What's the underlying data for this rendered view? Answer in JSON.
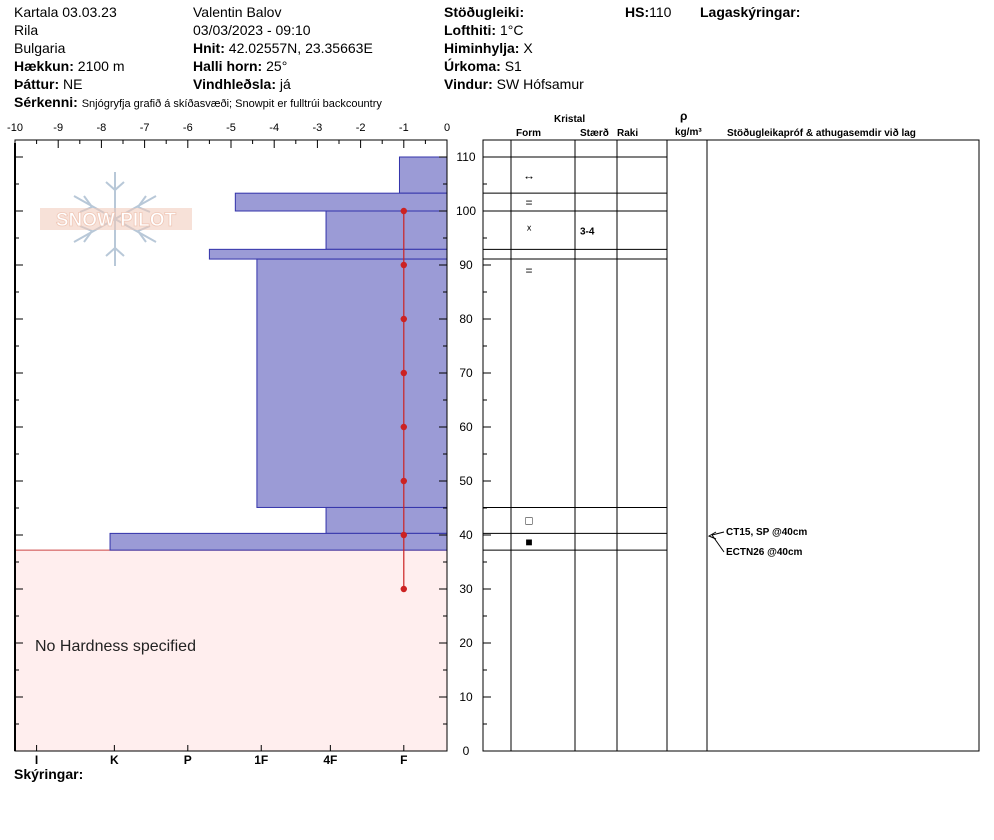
{
  "header": {
    "left": {
      "line1": "Kartala 03.03.23",
      "line2": "Rila",
      "line3": "Bulgaria",
      "elevation_label": "Hækkun:",
      "elevation_value": "2100 m",
      "aspect_label": "Þáttur:",
      "aspect_value": "NE"
    },
    "middle": {
      "observer": "Valentin Balov",
      "datetime": "03/03/2023 - 09:10",
      "coords_label": "Hnit:",
      "coords_value": "42.02557N, 23.35663E",
      "slope_label": "Halli horn:",
      "slope_value": "25°",
      "wind_loading_label": "Vindhleðsla:",
      "wind_loading_value": "já"
    },
    "right": {
      "stability_label": "Stöðugleiki:",
      "air_temp_label": "Lofthiti:",
      "air_temp_value": "1°C",
      "sky_label": "Himinhylja:",
      "sky_value": "X",
      "precip_label": "Úrkoma:",
      "precip_value": "S1",
      "wind_label": "Vindur:",
      "wind_value": "SW Hófsamur",
      "hs_label": "HS:",
      "hs_value": "110",
      "layer_notes_label": "Lagaskýringar:"
    },
    "features_label": "Sérkenni:",
    "features_value": "Snjógryfja grafið á skíðasvæði; Snowpit er fulltrúi backcountry"
  },
  "table_headers": {
    "crystal": "Kristal",
    "form": "Form",
    "size": "Stærð",
    "moisture": "Raki",
    "rho": "ρ",
    "density_unit": "kg/m³",
    "tests": "Stöðugleikapróf & athugasemdir við lag"
  },
  "logo_text": "SNOW PILOT",
  "no_hardness_text": "No Hardness specified",
  "legend_label": "Skýringar:",
  "colors": {
    "hardness_fill": "#9b9bd6",
    "hardness_stroke": "#3333aa",
    "no_hardness_fill": "#ffeeee",
    "temp_line": "#cc2222",
    "logo": "#f0c8b8",
    "snowflake": "#b8c8d8"
  },
  "chart_data": {
    "type": "area",
    "temp_axis": {
      "ticks": [
        -10,
        -9,
        -8,
        -7,
        -6,
        -5,
        -4,
        -3,
        -2,
        -1,
        0
      ],
      "range": [
        -10,
        0
      ]
    },
    "height_axis": {
      "ticks": [
        0,
        10,
        20,
        30,
        40,
        50,
        60,
        70,
        80,
        90,
        100,
        110
      ],
      "range": [
        0,
        110
      ],
      "unit": "cm"
    },
    "hardness_axis": {
      "labels": [
        "I",
        "K",
        "P",
        "1F",
        "4F",
        "F"
      ],
      "temp_positions": [
        -9.5,
        -7.7,
        -6,
        -4.3,
        -2.7,
        -1
      ]
    },
    "hardness_profile": [
      {
        "top": 110,
        "bottom": 103.3,
        "temp_equiv": -1.1
      },
      {
        "top": 103.3,
        "bottom": 100,
        "temp_equiv": -4.9
      },
      {
        "top": 100,
        "bottom": 92.9,
        "temp_equiv": -2.8
      },
      {
        "top": 92.9,
        "bottom": 91.1,
        "temp_equiv": -5.5
      },
      {
        "top": 91.1,
        "bottom": 45.1,
        "temp_equiv": -4.4
      },
      {
        "top": 45.1,
        "bottom": 40.3,
        "temp_equiv": -2.8
      },
      {
        "top": 40.3,
        "bottom": 37.2,
        "temp_equiv": -7.8
      }
    ],
    "no_hardness_below": 37.2,
    "temperature_profile": {
      "depth": [
        100,
        90,
        80,
        70,
        60,
        50,
        40,
        30
      ],
      "temp": [
        -1,
        -1,
        -1,
        -1,
        -1,
        -1,
        -1,
        -1
      ]
    },
    "layer_boundaries": [
      110,
      103.3,
      100,
      92.9,
      91.1,
      45.1,
      40.3,
      37.2
    ],
    "layers": [
      {
        "mid": 106.6,
        "form": "↔",
        "size": "",
        "moisture": ""
      },
      {
        "mid": 101.6,
        "form": "=",
        "size": "",
        "moisture": ""
      },
      {
        "mid": 96.4,
        "form": "ᕽ",
        "size": "3-4",
        "moisture": ""
      },
      {
        "mid": 92.0,
        "form": "",
        "size": "",
        "moisture": ""
      },
      {
        "mid": 89.0,
        "form": "=",
        "size": "",
        "moisture": ""
      },
      {
        "mid": 42.7,
        "form": "□",
        "size": "",
        "moisture": ""
      },
      {
        "mid": 38.7,
        "form": "■",
        "size": "",
        "moisture": ""
      }
    ],
    "tests": [
      {
        "depth": 40,
        "label": "CT15, SP @40cm"
      },
      {
        "depth": 40,
        "label": "ECTN26 @40cm"
      }
    ]
  }
}
